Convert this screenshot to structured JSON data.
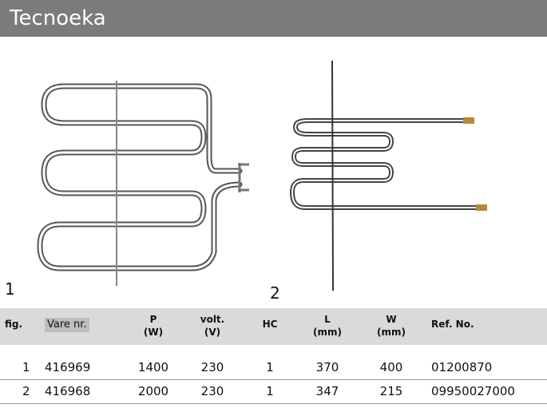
{
  "header": {
    "title": "Tecnoeka"
  },
  "figures": [
    {
      "label": "1"
    },
    {
      "label": "2"
    }
  ],
  "table": {
    "headers": [
      [
        "fig."
      ],
      [
        "Vare nr."
      ],
      [
        "P",
        "(W)"
      ],
      [
        "volt.",
        "(V)"
      ],
      [
        "HC"
      ],
      [
        "L",
        "(mm)"
      ],
      [
        "W",
        "(mm)"
      ],
      [
        "Ref. No."
      ]
    ],
    "rows": [
      [
        "1",
        "416969",
        "1400",
        "230",
        "1",
        "370",
        "400",
        "01200870"
      ],
      [
        "2",
        "416968",
        "2000",
        "230",
        "1",
        "347",
        "215",
        "09950027000"
      ]
    ]
  }
}
